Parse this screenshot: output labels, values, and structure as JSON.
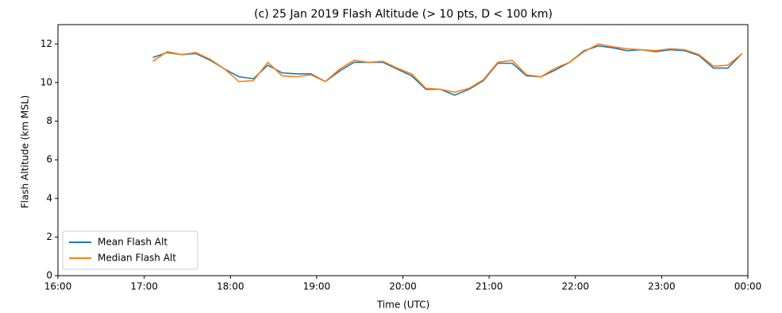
{
  "chart_data": {
    "type": "line",
    "title": "(c) 25 Jan 2019 Flash Altitude (> 10 pts, D < 100 km)",
    "xlabel": "Time (UTC)",
    "ylabel": "Flash Altitude (km MSL)",
    "x": [
      17.1,
      17.267,
      17.433,
      17.6,
      17.767,
      17.933,
      18.1,
      18.267,
      18.433,
      18.6,
      18.767,
      18.933,
      19.1,
      19.267,
      19.433,
      19.6,
      19.767,
      19.933,
      20.1,
      20.267,
      20.433,
      20.6,
      20.767,
      20.933,
      21.1,
      21.267,
      21.433,
      21.6,
      21.767,
      21.933,
      22.1,
      22.267,
      22.433,
      22.6,
      22.767,
      22.933,
      23.1,
      23.267,
      23.433,
      23.6,
      23.767,
      23.933
    ],
    "series": [
      {
        "name": "Mean Flash Alt",
        "color": "#1f77b4",
        "values": [
          11.3,
          11.55,
          11.45,
          11.5,
          11.15,
          10.7,
          10.3,
          10.2,
          10.9,
          10.5,
          10.45,
          10.45,
          10.05,
          10.6,
          11.05,
          11.05,
          11.05,
          10.7,
          10.35,
          9.65,
          9.65,
          9.35,
          9.65,
          10.1,
          11.0,
          11.0,
          10.35,
          10.3,
          10.65,
          11.05,
          11.65,
          11.9,
          11.8,
          11.65,
          11.7,
          11.6,
          11.7,
          11.65,
          11.4,
          10.75,
          10.75,
          11.5
        ]
      },
      {
        "name": "Median Flash Alt",
        "color": "#ff7f0e",
        "values": [
          11.1,
          11.6,
          11.45,
          11.55,
          11.2,
          10.7,
          10.05,
          10.1,
          11.05,
          10.35,
          10.3,
          10.4,
          10.05,
          10.7,
          11.15,
          11.05,
          11.1,
          10.75,
          10.45,
          9.7,
          9.65,
          9.5,
          9.7,
          10.15,
          11.05,
          11.15,
          10.4,
          10.3,
          10.75,
          11.05,
          11.6,
          12.0,
          11.85,
          11.75,
          11.7,
          11.65,
          11.75,
          11.7,
          11.45,
          10.85,
          10.9,
          11.5
        ]
      }
    ],
    "xlim": [
      16,
      24
    ],
    "xticks": [
      {
        "value": 16,
        "label": "16:00"
      },
      {
        "value": 17,
        "label": "17:00"
      },
      {
        "value": 18,
        "label": "18:00"
      },
      {
        "value": 19,
        "label": "19:00"
      },
      {
        "value": 20,
        "label": "20:00"
      },
      {
        "value": 21,
        "label": "21:00"
      },
      {
        "value": 22,
        "label": "22:00"
      },
      {
        "value": 23,
        "label": "23:00"
      },
      {
        "value": 24,
        "label": "00:00"
      }
    ],
    "ylim": [
      0,
      13
    ],
    "yticks": [
      0,
      2,
      4,
      6,
      8,
      10,
      12
    ],
    "legend": "lower left"
  }
}
